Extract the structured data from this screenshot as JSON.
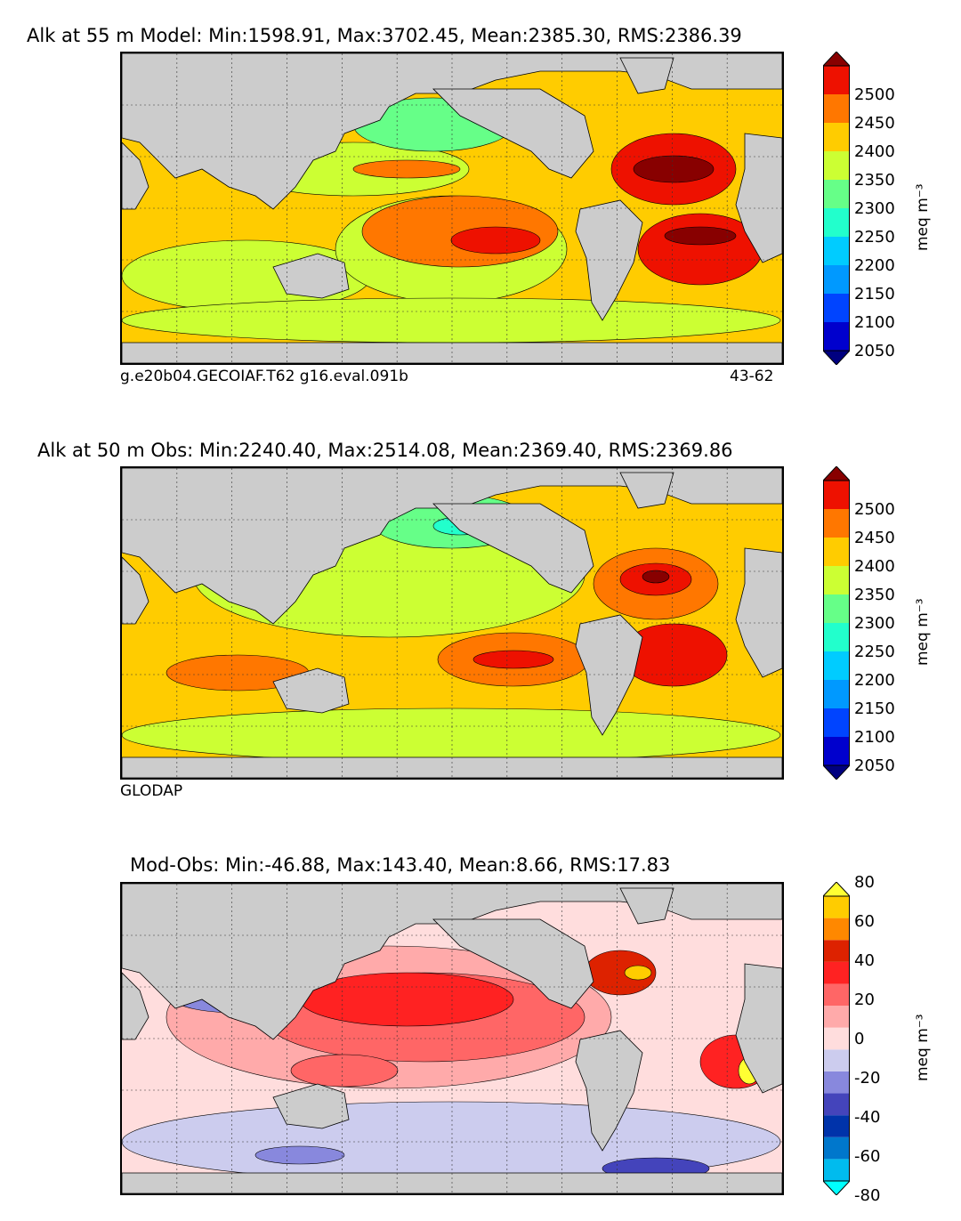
{
  "panels": [
    {
      "title": "Alk at 55 m Model: Min:1598.91, Max:3702.45, Mean:2385.30, RMS:2386.39",
      "caption_left": "g.e20b04.GECOIAF.T62 g16.eval.091b",
      "caption_right": "43-62",
      "colorbar_ticks": [
        "2500",
        "2450",
        "2400",
        "2350",
        "2300",
        "2250",
        "2200",
        "2150",
        "2100",
        "2050"
      ],
      "unit": "meq m⁻³",
      "colors": [
        "#000080",
        "#0000cd",
        "#0044ff",
        "#0099ff",
        "#00ccff",
        "#22ffcc",
        "#66ff88",
        "#ccff33",
        "#ffcc00",
        "#ff7700",
        "#ee1100",
        "#880000"
      ]
    },
    {
      "title": "Alk at 50 m Obs: Min:2240.40, Max:2514.08, Mean:2369.40, RMS:2369.86",
      "caption_left": "GLODAP",
      "caption_right": "",
      "colorbar_ticks": [
        "2500",
        "2450",
        "2400",
        "2350",
        "2300",
        "2250",
        "2200",
        "2150",
        "2100",
        "2050"
      ],
      "unit": "meq m⁻³",
      "colors": [
        "#000080",
        "#0000cd",
        "#0044ff",
        "#0099ff",
        "#00ccff",
        "#22ffcc",
        "#66ff88",
        "#ccff33",
        "#ffcc00",
        "#ff7700",
        "#ee1100",
        "#880000"
      ]
    },
    {
      "title": "Mod-Obs: Min:-46.88, Max:143.40, Mean:8.66, RMS:17.83",
      "caption_left": "",
      "caption_right": "",
      "colorbar_ticks": [
        "80",
        "60",
        "40",
        "20",
        "0",
        "-20",
        "-40",
        "-60",
        "-80"
      ],
      "unit": "meq m⁻³",
      "colors": [
        "#00ffff",
        "#00bbee",
        "#0077cc",
        "#0033aa",
        "#4444bb",
        "#8888dd",
        "#ccccee",
        "#ffdddd",
        "#ffaaaa",
        "#ff6666",
        "#ff2222",
        "#dd2200",
        "#ff8800",
        "#ffcc00",
        "#ffff33"
      ]
    }
  ],
  "map": {
    "land_color": "#cccccc",
    "grid": true
  }
}
